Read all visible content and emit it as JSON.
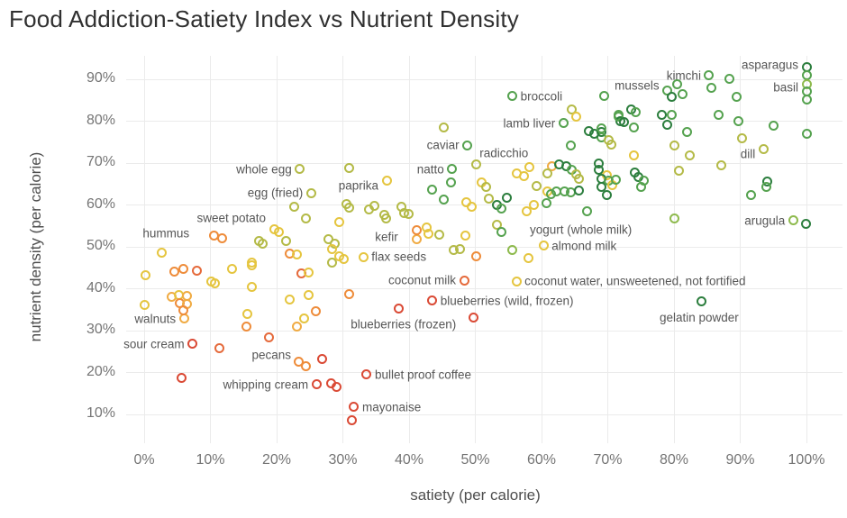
{
  "title": "Food Addiction-Satiety Index vs Nutrient Density",
  "palette": {
    "r": "#da4a35",
    "or": "#e56a3b",
    "o": "#ee8c3a",
    "yo": "#f0ab43",
    "y": "#e5c53f",
    "yg": "#b4ba47",
    "lg": "#8eba4d",
    "g": "#55a24f",
    "dg": "#2c7e3e"
  },
  "chart_data": {
    "type": "scatter",
    "title": "Food Addiction-Satiety Index vs Nutrient Density",
    "xlabel": "satiety (per calorie)",
    "ylabel": "nutrient density (per calorie)",
    "xlim": [
      0,
      100
    ],
    "ylim": [
      5,
      95
    ],
    "x_ticks": [
      "0%",
      "10%",
      "20%",
      "30%",
      "40%",
      "50%",
      "60%",
      "70%",
      "80%",
      "90%",
      "100%"
    ],
    "y_ticks": [
      "10%",
      "20%",
      "30%",
      "40%",
      "50%",
      "60%",
      "70%",
      "80%",
      "90%"
    ],
    "grid": true,
    "marker_style": "open-ring",
    "points": [
      {
        "x": 100,
        "y": 93,
        "c": "dg",
        "label": "asparagus",
        "pos": "left",
        "oy": -2
      },
      {
        "x": 100,
        "y": 90.9,
        "c": "g"
      },
      {
        "x": 100,
        "y": 88.9,
        "c": "lg"
      },
      {
        "x": 100,
        "y": 87,
        "c": "g",
        "label": "basil",
        "pos": "left",
        "oy": -5
      },
      {
        "x": 100,
        "y": 85.1,
        "c": "g"
      },
      {
        "x": 85.3,
        "y": 90.9,
        "c": "g",
        "label": "kimchi",
        "pos": "left"
      },
      {
        "x": 88.4,
        "y": 90.2,
        "c": "g"
      },
      {
        "x": 79,
        "y": 87.3,
        "c": "g",
        "label": "mussels",
        "pos": "left",
        "oy": -6
      },
      {
        "x": 80.5,
        "y": 88.9,
        "c": "g"
      },
      {
        "x": 81.3,
        "y": 86.5,
        "c": "g"
      },
      {
        "x": 79.7,
        "y": 85.7,
        "c": "dg"
      },
      {
        "x": 69.5,
        "y": 86.1,
        "c": "g"
      },
      {
        "x": 55.6,
        "y": 86,
        "c": "g",
        "label": "broccoli",
        "pos": "right"
      },
      {
        "x": 63.3,
        "y": 79.5,
        "c": "g",
        "label": "lamb liver",
        "pos": "left"
      },
      {
        "x": 48.8,
        "y": 74.3,
        "c": "g",
        "label": "caviar",
        "pos": "left"
      },
      {
        "x": 93.5,
        "y": 73.4,
        "c": "yg",
        "label": "dill",
        "pos": "left",
        "oy": 6
      },
      {
        "x": 46.5,
        "y": 68.5,
        "c": "g",
        "label": "natto",
        "pos": "left"
      },
      {
        "x": 50.1,
        "y": 69.6,
        "c": "yg",
        "label": "radicchio",
        "pos": "right",
        "ox": -5,
        "oy": -13
      },
      {
        "x": 23.5,
        "y": 68.5,
        "c": "yg",
        "label": "whole egg",
        "pos": "left"
      },
      {
        "x": 31,
        "y": 68.9,
        "c": "yg"
      },
      {
        "x": 36.6,
        "y": 65.9,
        "c": "y",
        "label": "paprika",
        "pos": "left",
        "oy": 6
      },
      {
        "x": 25.2,
        "y": 62.8,
        "c": "yg",
        "label": "egg (fried)",
        "pos": "left"
      },
      {
        "x": 98,
        "y": 56.3,
        "c": "lg",
        "label": "arugula",
        "pos": "left"
      },
      {
        "x": 99.9,
        "y": 55.5,
        "c": "dg"
      },
      {
        "x": 19.6,
        "y": 54.2,
        "c": "y",
        "label": "sweet potato",
        "pos": "left",
        "oy": -12
      },
      {
        "x": 53.2,
        "y": 55.2,
        "c": "yg",
        "label": "yogurt (whole milk)",
        "pos": "right",
        "ox": 28,
        "oy": 5
      },
      {
        "x": 10.5,
        "y": 52.6,
        "c": "o",
        "label": "hummus",
        "pos": "left",
        "ox": -18,
        "oy": -3
      },
      {
        "x": 41.2,
        "y": 51.8,
        "c": "yo",
        "label": "kefir",
        "pos": "left",
        "ox": -12,
        "oy": -3
      },
      {
        "x": 60.3,
        "y": 50.3,
        "c": "y",
        "label": "almond milk",
        "pos": "right"
      },
      {
        "x": 33.1,
        "y": 47.6,
        "c": "y",
        "label": "flax seeds",
        "pos": "right"
      },
      {
        "x": 48.3,
        "y": 42,
        "c": "or",
        "label": "coconut milk",
        "pos": "left"
      },
      {
        "x": 56.2,
        "y": 41.8,
        "c": "y",
        "label": "coconut water, unsweetened, not fortified",
        "pos": "right"
      },
      {
        "x": 84.2,
        "y": 36.9,
        "c": "dg",
        "label": "gelatin powder",
        "pos": "below",
        "ox": -3
      },
      {
        "x": 43.5,
        "y": 37.1,
        "c": "r",
        "label": "blueberries (wild, frozen)",
        "pos": "right"
      },
      {
        "x": 49.7,
        "y": 33.2,
        "c": "r",
        "label": "blueberries (frozen)",
        "pos": "left",
        "ox": -10,
        "oy": 8
      },
      {
        "x": 6,
        "y": 32.8,
        "c": "yo",
        "label": "walnuts",
        "pos": "left"
      },
      {
        "x": 7.3,
        "y": 26.8,
        "c": "r",
        "label": "sour cream",
        "pos": "left"
      },
      {
        "x": 23.4,
        "y": 22.5,
        "c": "o",
        "label": "pecans",
        "pos": "left",
        "oy": -8
      },
      {
        "x": 26,
        "y": 17.1,
        "c": "r",
        "label": "whipping cream",
        "pos": "left"
      },
      {
        "x": 33.6,
        "y": 19.5,
        "c": "r",
        "label": "bullet proof coffee",
        "pos": "right"
      },
      {
        "x": 31.7,
        "y": 11.8,
        "c": "r",
        "label": "mayonaise",
        "pos": "right"
      },
      {
        "x": 85.6,
        "y": 87.9,
        "c": "g"
      },
      {
        "x": 89.5,
        "y": 85.7,
        "c": "g"
      },
      {
        "x": 86.8,
        "y": 81.4,
        "c": "g"
      },
      {
        "x": 89.7,
        "y": 80,
        "c": "g"
      },
      {
        "x": 95,
        "y": 79,
        "c": "g"
      },
      {
        "x": 90.3,
        "y": 76,
        "c": "yg"
      },
      {
        "x": 100,
        "y": 76.9,
        "c": "g"
      },
      {
        "x": 87.2,
        "y": 69.5,
        "c": "yg"
      },
      {
        "x": 82.4,
        "y": 71.9,
        "c": "yg"
      },
      {
        "x": 80.1,
        "y": 74.1,
        "c": "yg"
      },
      {
        "x": 80.7,
        "y": 68.1,
        "c": "yg"
      },
      {
        "x": 94.1,
        "y": 65.5,
        "c": "dg"
      },
      {
        "x": 82,
        "y": 77.5,
        "c": "g"
      },
      {
        "x": 78.2,
        "y": 81.6,
        "c": "dg"
      },
      {
        "x": 79.6,
        "y": 81.4,
        "c": "g"
      },
      {
        "x": 79,
        "y": 79.2,
        "c": "dg"
      },
      {
        "x": 71.6,
        "y": 81.4,
        "c": "g"
      },
      {
        "x": 71.9,
        "y": 79.9,
        "c": "dg"
      },
      {
        "x": 73.6,
        "y": 82.7,
        "c": "dg"
      },
      {
        "x": 74.2,
        "y": 82.2,
        "c": "g"
      },
      {
        "x": 73.9,
        "y": 78.6,
        "c": "g"
      },
      {
        "x": 69.1,
        "y": 77.4,
        "c": "dg"
      },
      {
        "x": 69.1,
        "y": 76.2,
        "c": "g"
      },
      {
        "x": 70.1,
        "y": 75.4,
        "c": "yg"
      },
      {
        "x": 70.5,
        "y": 74.5,
        "c": "yg"
      },
      {
        "x": 74,
        "y": 71.9,
        "c": "y"
      },
      {
        "x": 91.6,
        "y": 62.4,
        "c": "g"
      },
      {
        "x": 93.9,
        "y": 64.3,
        "c": "g"
      },
      {
        "x": 80,
        "y": 56.8,
        "c": "lg"
      },
      {
        "x": 69.8,
        "y": 62.3,
        "c": "dg"
      },
      {
        "x": 69,
        "y": 64.4,
        "c": "dg"
      },
      {
        "x": 75.1,
        "y": 64.4,
        "c": "g"
      },
      {
        "x": 61.6,
        "y": 69.2,
        "c": "yo"
      },
      {
        "x": 62.6,
        "y": 69.7,
        "c": "dg"
      },
      {
        "x": 63.7,
        "y": 69.2,
        "c": "dg"
      },
      {
        "x": 64.6,
        "y": 68.4,
        "c": "g"
      },
      {
        "x": 65.3,
        "y": 67.3,
        "c": "yg"
      },
      {
        "x": 65.7,
        "y": 66.2,
        "c": "yg"
      },
      {
        "x": 60.9,
        "y": 67.5,
        "c": "yg"
      },
      {
        "x": 59.2,
        "y": 64.5,
        "c": "yg"
      },
      {
        "x": 60.9,
        "y": 63.2,
        "c": "y"
      },
      {
        "x": 68.7,
        "y": 69.9,
        "c": "dg"
      },
      {
        "x": 68.7,
        "y": 68.4,
        "c": "dg"
      },
      {
        "x": 69.8,
        "y": 67.1,
        "c": "y"
      },
      {
        "x": 69.1,
        "y": 66.2,
        "c": "dg"
      },
      {
        "x": 70.1,
        "y": 65.8,
        "c": "g"
      },
      {
        "x": 70.7,
        "y": 64.7,
        "c": "y"
      },
      {
        "x": 71.2,
        "y": 66,
        "c": "g"
      },
      {
        "x": 74.1,
        "y": 67.7,
        "c": "dg"
      },
      {
        "x": 74.6,
        "y": 66.7,
        "c": "dg"
      },
      {
        "x": 75.4,
        "y": 65.8,
        "c": "g"
      },
      {
        "x": 64.6,
        "y": 82.7,
        "c": "yg"
      },
      {
        "x": 65.3,
        "y": 81,
        "c": "y"
      },
      {
        "x": 67.1,
        "y": 77.7,
        "c": "dg"
      },
      {
        "x": 68,
        "y": 76.9,
        "c": "dg"
      },
      {
        "x": 69,
        "y": 78.2,
        "c": "g"
      },
      {
        "x": 71.7,
        "y": 81,
        "c": "g"
      },
      {
        "x": 72.4,
        "y": 79.7,
        "c": "dg"
      },
      {
        "x": 64.4,
        "y": 74.1,
        "c": "g"
      },
      {
        "x": 45.2,
        "y": 78.6,
        "c": "yg"
      },
      {
        "x": 56.2,
        "y": 67.6,
        "c": "y"
      },
      {
        "x": 58.2,
        "y": 69.1,
        "c": "y"
      },
      {
        "x": 57.4,
        "y": 66.9,
        "c": "y"
      },
      {
        "x": 46.3,
        "y": 65.4,
        "c": "g"
      },
      {
        "x": 51,
        "y": 65.4,
        "c": "y"
      },
      {
        "x": 43.5,
        "y": 63.7,
        "c": "g"
      },
      {
        "x": 45.3,
        "y": 61.2,
        "c": "g"
      },
      {
        "x": 48.7,
        "y": 60.6,
        "c": "y"
      },
      {
        "x": 49.4,
        "y": 59.5,
        "c": "y"
      },
      {
        "x": 51.6,
        "y": 64.2,
        "c": "yg"
      },
      {
        "x": 52.1,
        "y": 61.4,
        "c": "yg"
      },
      {
        "x": 53.3,
        "y": 59.9,
        "c": "dg"
      },
      {
        "x": 54,
        "y": 59.2,
        "c": "g"
      },
      {
        "x": 54.8,
        "y": 61.8,
        "c": "dg"
      },
      {
        "x": 57.8,
        "y": 58.6,
        "c": "y"
      },
      {
        "x": 58.8,
        "y": 59.9,
        "c": "y"
      },
      {
        "x": 60.8,
        "y": 60.4,
        "c": "g"
      },
      {
        "x": 61.4,
        "y": 62.6,
        "c": "g"
      },
      {
        "x": 62.2,
        "y": 63.2,
        "c": "g"
      },
      {
        "x": 63.5,
        "y": 63.2,
        "c": "g"
      },
      {
        "x": 64.4,
        "y": 63,
        "c": "g"
      },
      {
        "x": 65.6,
        "y": 63.4,
        "c": "dg"
      },
      {
        "x": 66.9,
        "y": 58.6,
        "c": "g"
      },
      {
        "x": 22.7,
        "y": 59.5,
        "c": "yg"
      },
      {
        "x": 24.4,
        "y": 56.7,
        "c": "yg"
      },
      {
        "x": 29.4,
        "y": 56,
        "c": "y"
      },
      {
        "x": 30.5,
        "y": 60.2,
        "c": "yg"
      },
      {
        "x": 31,
        "y": 59.3,
        "c": "yg"
      },
      {
        "x": 34.7,
        "y": 59.7,
        "c": "yg"
      },
      {
        "x": 34,
        "y": 59,
        "c": "yg"
      },
      {
        "x": 36.2,
        "y": 57.6,
        "c": "yg"
      },
      {
        "x": 36.5,
        "y": 56.8,
        "c": "yg"
      },
      {
        "x": 38.8,
        "y": 59.5,
        "c": "yg"
      },
      {
        "x": 39.2,
        "y": 58,
        "c": "yg"
      },
      {
        "x": 39.9,
        "y": 57.8,
        "c": "yg"
      },
      {
        "x": 20.4,
        "y": 53.5,
        "c": "y"
      },
      {
        "x": 17.4,
        "y": 51.4,
        "c": "yg"
      },
      {
        "x": 17.9,
        "y": 50.8,
        "c": "yg"
      },
      {
        "x": 21.4,
        "y": 51.3,
        "c": "yg"
      },
      {
        "x": 22,
        "y": 48.3,
        "c": "o"
      },
      {
        "x": 23,
        "y": 48.1,
        "c": "y"
      },
      {
        "x": 11.8,
        "y": 52,
        "c": "o"
      },
      {
        "x": 27.8,
        "y": 51.9,
        "c": "yg"
      },
      {
        "x": 28.8,
        "y": 50.8,
        "c": "yg"
      },
      {
        "x": 28.3,
        "y": 49.5,
        "c": "y"
      },
      {
        "x": 28.3,
        "y": 46.3,
        "c": "yg"
      },
      {
        "x": 29.4,
        "y": 47.7,
        "c": "y"
      },
      {
        "x": 30.2,
        "y": 47.1,
        "c": "y"
      },
      {
        "x": 41.2,
        "y": 53.9,
        "c": "o"
      },
      {
        "x": 42.7,
        "y": 54.7,
        "c": "y"
      },
      {
        "x": 42.9,
        "y": 53.2,
        "c": "y"
      },
      {
        "x": 44.5,
        "y": 52.9,
        "c": "yg"
      },
      {
        "x": 48.5,
        "y": 52.6,
        "c": "y"
      },
      {
        "x": 54,
        "y": 53.5,
        "c": "g"
      },
      {
        "x": 46.7,
        "y": 49.2,
        "c": "yg"
      },
      {
        "x": 47.7,
        "y": 49.5,
        "c": "yg"
      },
      {
        "x": 50.2,
        "y": 47.7,
        "c": "o"
      },
      {
        "x": 55.6,
        "y": 49.2,
        "c": "lg"
      },
      {
        "x": 58,
        "y": 47.4,
        "c": "y"
      },
      {
        "x": 2.7,
        "y": 48.7,
        "c": "y"
      },
      {
        "x": 0.2,
        "y": 43.3,
        "c": "y"
      },
      {
        "x": 0,
        "y": 36.2,
        "c": "y"
      },
      {
        "x": 4.6,
        "y": 44,
        "c": "o"
      },
      {
        "x": 5.9,
        "y": 44.8,
        "c": "o"
      },
      {
        "x": 8,
        "y": 44.2,
        "c": "or"
      },
      {
        "x": 13.3,
        "y": 44.8,
        "c": "y"
      },
      {
        "x": 16.2,
        "y": 46.3,
        "c": "y"
      },
      {
        "x": 16.2,
        "y": 45.6,
        "c": "y"
      },
      {
        "x": 10.1,
        "y": 41.8,
        "c": "y"
      },
      {
        "x": 10.7,
        "y": 41.2,
        "c": "y"
      },
      {
        "x": 16.2,
        "y": 40.5,
        "c": "y"
      },
      {
        "x": 23.8,
        "y": 43.7,
        "c": "or"
      },
      {
        "x": 24.8,
        "y": 43.9,
        "c": "y"
      },
      {
        "x": 30.9,
        "y": 38.8,
        "c": "o"
      },
      {
        "x": 24.8,
        "y": 38.6,
        "c": "y"
      },
      {
        "x": 22,
        "y": 37.5,
        "c": "y"
      },
      {
        "x": 15.6,
        "y": 34,
        "c": "y"
      },
      {
        "x": 25.9,
        "y": 34.6,
        "c": "o"
      },
      {
        "x": 38.5,
        "y": 35.2,
        "c": "r"
      },
      {
        "x": 4.1,
        "y": 38.1,
        "c": "yo"
      },
      {
        "x": 5.2,
        "y": 38.5,
        "c": "y"
      },
      {
        "x": 6.4,
        "y": 38.3,
        "c": "yo"
      },
      {
        "x": 5.4,
        "y": 36.6,
        "c": "o"
      },
      {
        "x": 6.5,
        "y": 36.3,
        "c": "yo"
      },
      {
        "x": 5.9,
        "y": 34.8,
        "c": "o"
      },
      {
        "x": 15.5,
        "y": 30.9,
        "c": "o"
      },
      {
        "x": 18.8,
        "y": 28.4,
        "c": "or"
      },
      {
        "x": 23,
        "y": 30.9,
        "c": "yo"
      },
      {
        "x": 24.2,
        "y": 32.8,
        "c": "y"
      },
      {
        "x": 11.3,
        "y": 25.9,
        "c": "or"
      },
      {
        "x": 24.4,
        "y": 21.4,
        "c": "o"
      },
      {
        "x": 26.9,
        "y": 23.3,
        "c": "r"
      },
      {
        "x": 5.6,
        "y": 18.8,
        "c": "r"
      },
      {
        "x": 28.2,
        "y": 17.5,
        "c": "r"
      },
      {
        "x": 29.1,
        "y": 16.6,
        "c": "r"
      },
      {
        "x": 31.3,
        "y": 8.7,
        "c": "r"
      }
    ]
  }
}
